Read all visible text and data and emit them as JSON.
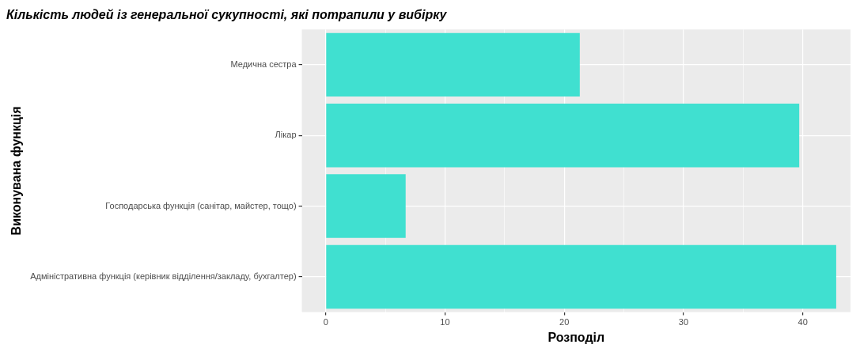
{
  "chart_data": {
    "type": "bar",
    "orientation": "horizontal",
    "title": "Кількість людей із генеральної сукупності, які потрапили у вибірку",
    "xlabel": "Розподіл",
    "ylabel": "Виконувана функція",
    "categories": [
      "Медична сестра",
      "Лікар",
      "Господарська функція (санітар, майстер, тощо)",
      "Адміністративна функція (керівник відділення/закладу, бухгалтер)"
    ],
    "values": [
      21.3,
      39.7,
      6.7,
      42.8
    ],
    "color": "#40e0d0",
    "xlim": [
      -2,
      44
    ],
    "xticks": [
      0,
      {
        "value": 5,
        "label": null
      },
      10,
      {
        "value": 15,
        "label": null
      },
      20,
      {
        "value": 25,
        "label": null
      },
      30,
      {
        "value": 35,
        "label": null
      },
      40
    ],
    "grid": true,
    "legend": false
  }
}
